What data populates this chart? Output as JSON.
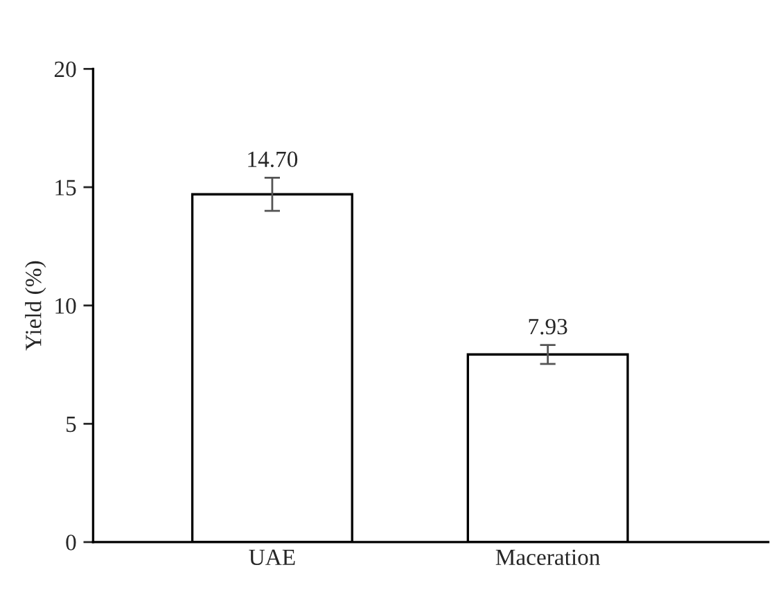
{
  "chart_data": {
    "type": "bar",
    "ylabel": "Yield (%)",
    "categories": [
      "UAE",
      "Maceration"
    ],
    "values": [
      14.7,
      7.93
    ],
    "errors": [
      0.7,
      0.4
    ],
    "color": "#ffffff",
    "value_labels": [
      "14.70",
      "7.93"
    ],
    "ylim": [
      0,
      20
    ],
    "yticks": [
      0,
      5,
      10,
      15,
      20
    ],
    "grid": false
  }
}
